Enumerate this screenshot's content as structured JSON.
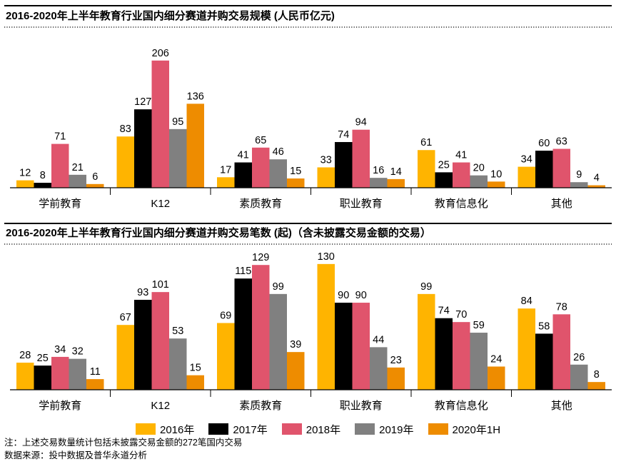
{
  "colors": {
    "2016": "#FFB400",
    "2017": "#000000",
    "2018": "#E0546C",
    "2019": "#808080",
    "2020H1": "#EE8C00"
  },
  "chart_data": [
    {
      "type": "bar",
      "title": "2016-2020年上半年教育行业国内细分赛道并购交易规模 (人民币亿元)",
      "categories": [
        "学前教育",
        "K12",
        "素质教育",
        "职业教育",
        "教育信息化",
        "其他"
      ],
      "series": [
        {
          "name": "2016年",
          "values": [
            12,
            83,
            17,
            33,
            61,
            34
          ]
        },
        {
          "name": "2017年",
          "values": [
            8,
            127,
            41,
            74,
            25,
            60
          ]
        },
        {
          "name": "2018年",
          "values": [
            71,
            206,
            65,
            94,
            41,
            63
          ]
        },
        {
          "name": "2019年",
          "values": [
            21,
            95,
            46,
            16,
            20,
            9
          ]
        },
        {
          "name": "2020年1H",
          "values": [
            6,
            136,
            15,
            14,
            10,
            4
          ]
        }
      ],
      "data_labels": true,
      "grid": false
    },
    {
      "type": "bar",
      "title": "2016-2020年上半年教育行业国内细分赛道并购交易笔数 (起)（含未披露交易金额的交易）",
      "categories": [
        "学前教育",
        "K12",
        "素质教育",
        "职业教育",
        "教育信息化",
        "其他"
      ],
      "series": [
        {
          "name": "2016年",
          "values": [
            28,
            67,
            69,
            130,
            99,
            84
          ]
        },
        {
          "name": "2017年",
          "values": [
            25,
            93,
            115,
            90,
            74,
            58
          ]
        },
        {
          "name": "2018年",
          "values": [
            34,
            101,
            129,
            90,
            70,
            78
          ]
        },
        {
          "name": "2019年",
          "values": [
            32,
            53,
            99,
            44,
            59,
            26
          ]
        },
        {
          "name": "2020年1H",
          "values": [
            11,
            15,
            39,
            23,
            24,
            8
          ]
        }
      ],
      "data_labels": true,
      "grid": false
    }
  ],
  "legend": {
    "position": "bottom",
    "items": [
      "2016年",
      "2017年",
      "2018年",
      "2019年",
      "2020年1H"
    ]
  },
  "footnote": "注：上述交易数量统计包括未披露交易金额的272笔国内交易",
  "source": "数据来源：投中数据及普华永道分析"
}
